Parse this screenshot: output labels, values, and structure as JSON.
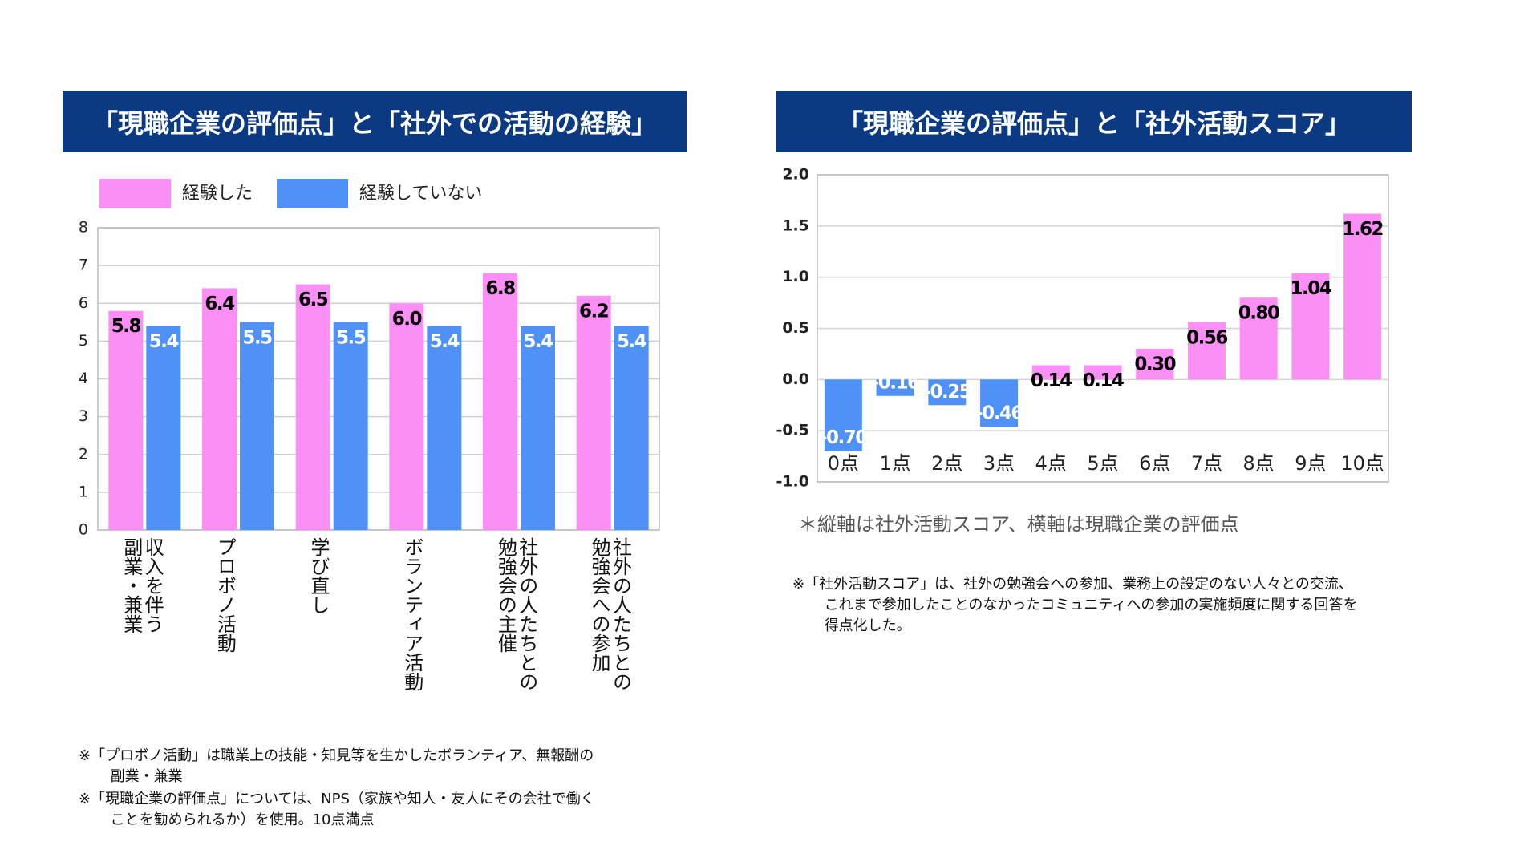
{
  "chart_data": [
    {
      "type": "grouped_bar",
      "title": "「現職企業の評価点」と「社外での活動の経験」",
      "categories": [
        "収入を伴う\n副業・兼業",
        "プロボノ活動",
        "学び直し",
        "ボランティア活動",
        "社外の人たちとの\n勉強会の主催",
        "社外の人たちとの\n勉強会への参加"
      ],
      "series": [
        {
          "name": "経験した",
          "color": "#fb8ff5",
          "values": [
            5.8,
            6.4,
            6.5,
            6.0,
            6.8,
            6.2
          ],
          "value_labels": [
            "5.8",
            "6.4",
            "6.5",
            "6.0",
            "6.8",
            "6.2"
          ]
        },
        {
          "name": "経験していない",
          "color": "#5091f7",
          "values": [
            5.4,
            5.5,
            5.5,
            5.4,
            5.4,
            5.4
          ],
          "value_labels": [
            "5.4",
            "5.5",
            "5.5",
            "5.4",
            "5.4",
            "5.4"
          ]
        }
      ],
      "ylim": [
        0,
        8
      ],
      "yticks": [
        0,
        1,
        2,
        3,
        4,
        5,
        6,
        7,
        8
      ],
      "grid": true,
      "legend": "top",
      "notes": [
        "※「プロボノ活動」は職業上の技能・知見等を生かしたボランティア、無報酬の\n副業・兼業",
        "※「現職企業の評価点」については、NPS（家族や知人・友人にその会社で働く\nことを勧められるか）を使用。10点満点"
      ]
    },
    {
      "type": "bar",
      "title": "「現職企業の評価点」と「社外活動スコア」",
      "categories": [
        "0点",
        "1点",
        "2点",
        "3点",
        "4点",
        "5点",
        "6点",
        "7点",
        "8点",
        "9点",
        "10点"
      ],
      "values": [
        -0.7,
        -0.16,
        -0.25,
        -0.46,
        0.14,
        0.14,
        0.3,
        0.56,
        0.8,
        1.04,
        1.62
      ],
      "value_labels": [
        "-0.70",
        "-0.16",
        "-0.25",
        "-0.46",
        "0.14",
        "0.14",
        "0.30",
        "0.56",
        "0.80",
        "1.04",
        "1.62"
      ],
      "positive_color": "#fb8ff5",
      "negative_color": "#5091f7",
      "ylim": [
        -1.0,
        2.0
      ],
      "yticks": [
        {
          "value": -1.0,
          "label": "-1.0"
        },
        {
          "value": -0.5,
          "label": "-0.5"
        },
        {
          "value": 0,
          "label": "0.0"
        },
        {
          "value": 0.5,
          "label": "0.5"
        },
        {
          "value": 1.0,
          "label": "1.0"
        },
        {
          "value": 1.5,
          "label": "1.5"
        },
        {
          "value": 2.0,
          "label": "2.0"
        }
      ],
      "grid": true,
      "axis_note": "＊縦軸は社外活動スコア、横軸は現職企業の評価点",
      "notes": [
        "※「社外活動スコア」は、社外の勉強会への参加、業務上の設定のない人々との交流、\nこれまで参加したことのなかったコミュニティへの参加の実施頻度に関する回答を\n得点化した。"
      ]
    }
  ]
}
